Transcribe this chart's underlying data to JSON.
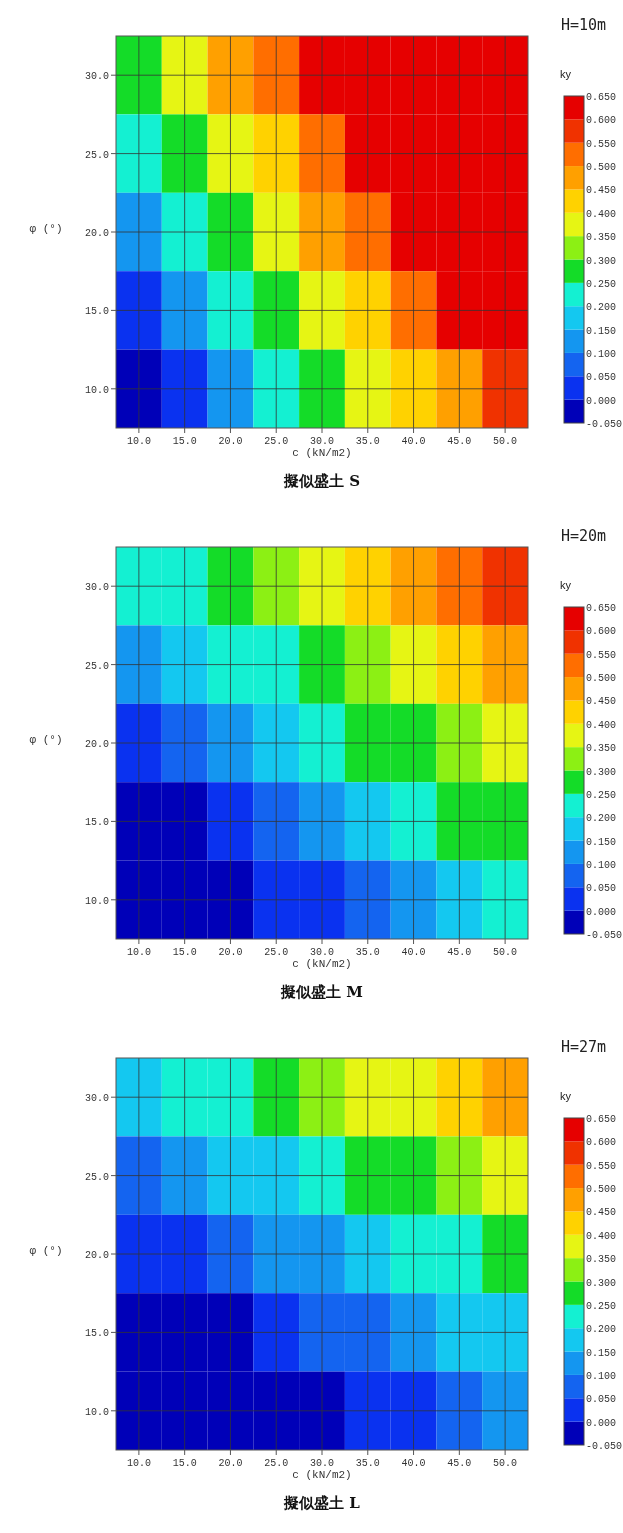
{
  "chart_data": [
    {
      "type": "heatmap",
      "title": "擬似盛土 S",
      "annotations": [
        "H=10m"
      ],
      "xlabel": "c (kN/m2)",
      "ylabel": "φ (°)",
      "clabel": "ky",
      "categories": [
        "10.0",
        "15.0",
        "20.0",
        "25.0",
        "30.0",
        "35.0",
        "40.0",
        "45.0",
        "50.0"
      ],
      "y_categories": [
        "30.0",
        "25.0",
        "20.0",
        "15.0",
        "10.0"
      ],
      "cells": [
        [
          0.29,
          0.37,
          0.45,
          0.52,
          0.6,
          0.68,
          0.76,
          0.83,
          0.91
        ],
        [
          0.21,
          0.29,
          0.37,
          0.44,
          0.52,
          0.6,
          0.68,
          0.75,
          0.83
        ],
        [
          0.14,
          0.22,
          0.29,
          0.37,
          0.45,
          0.52,
          0.6,
          0.68,
          0.76
        ],
        [
          0.03,
          0.13,
          0.21,
          0.29,
          0.36,
          0.44,
          0.52,
          0.6,
          0.68
        ],
        [
          -0.045,
          0.03,
          0.12,
          0.2,
          0.28,
          0.35,
          0.42,
          0.49,
          0.55
        ]
      ],
      "colors": [
        "#0000b8",
        "#0a32f0",
        "#1464f0",
        "#1496f0",
        "#14c8f0",
        "#14f0d2",
        "#14dc28",
        "#8cf014",
        "#e6f514",
        "#ffd200",
        "#ffa000",
        "#ff6e00",
        "#f03200",
        "#e60000"
      ],
      "clim": [
        -0.05,
        0.65
      ],
      "cticks": [
        {
          "value": -0.05,
          "label": "-0.050"
        },
        {
          "value": 0,
          "label": "0.000"
        },
        {
          "value": 0.05,
          "label": "0.050"
        },
        {
          "value": 0.1,
          "label": "0.100"
        },
        {
          "value": 0.15,
          "label": "0.150"
        },
        {
          "value": 0.2,
          "label": "0.200"
        },
        {
          "value": 0.25,
          "label": "0.250"
        },
        {
          "value": 0.3,
          "label": "0.300"
        },
        {
          "value": 0.35,
          "label": "0.350"
        },
        {
          "value": 0.4,
          "label": "0.400"
        },
        {
          "value": 0.45,
          "label": "0.450"
        },
        {
          "value": 0.5,
          "label": "0.500"
        },
        {
          "value": 0.55,
          "label": "0.550"
        },
        {
          "value": 0.6,
          "label": "0.600"
        },
        {
          "value": 0.65,
          "label": "0.650"
        }
      ],
      "grid": true
    },
    {
      "type": "heatmap",
      "title": "擬似盛土 M",
      "annotations": [
        "H=20m"
      ],
      "xlabel": "c (kN/m2)",
      "ylabel": "φ (°)",
      "clabel": "ky",
      "categories": [
        "10.0",
        "15.0",
        "20.0",
        "25.0",
        "30.0",
        "35.0",
        "40.0",
        "45.0",
        "50.0"
      ],
      "y_categories": [
        "30.0",
        "25.0",
        "20.0",
        "15.0",
        "10.0"
      ],
      "cells": [
        [
          0.2,
          0.24,
          0.29,
          0.33,
          0.38,
          0.42,
          0.46,
          0.51,
          0.56
        ],
        [
          0.11,
          0.16,
          0.2,
          0.24,
          0.29,
          0.33,
          0.38,
          0.42,
          0.46
        ],
        [
          0.03,
          0.07,
          0.11,
          0.16,
          0.2,
          0.25,
          0.29,
          0.33,
          0.38
        ],
        [
          -0.06,
          -0.02,
          0.03,
          0.07,
          0.11,
          0.16,
          0.2,
          0.25,
          0.29
        ],
        [
          -0.13,
          -0.09,
          -0.04,
          0.0,
          0.04,
          0.08,
          0.12,
          0.16,
          0.2
        ]
      ],
      "colors": [
        "#0000b8",
        "#0a32f0",
        "#1464f0",
        "#1496f0",
        "#14c8f0",
        "#14f0d2",
        "#14dc28",
        "#8cf014",
        "#e6f514",
        "#ffd200",
        "#ffa000",
        "#ff6e00",
        "#f03200",
        "#e60000"
      ],
      "clim": [
        -0.05,
        0.65
      ],
      "cticks": [
        {
          "value": -0.05,
          "label": "-0.050"
        },
        {
          "value": 0,
          "label": "0.000"
        },
        {
          "value": 0.05,
          "label": "0.050"
        },
        {
          "value": 0.1,
          "label": "0.100"
        },
        {
          "value": 0.15,
          "label": "0.150"
        },
        {
          "value": 0.2,
          "label": "0.200"
        },
        {
          "value": 0.25,
          "label": "0.250"
        },
        {
          "value": 0.3,
          "label": "0.300"
        },
        {
          "value": 0.35,
          "label": "0.350"
        },
        {
          "value": 0.4,
          "label": "0.400"
        },
        {
          "value": 0.45,
          "label": "0.450"
        },
        {
          "value": 0.5,
          "label": "0.500"
        },
        {
          "value": 0.55,
          "label": "0.550"
        },
        {
          "value": 0.6,
          "label": "0.600"
        },
        {
          "value": 0.65,
          "label": "0.650"
        }
      ],
      "grid": true
    },
    {
      "type": "heatmap",
      "title": "擬似盛土 L",
      "annotations": [
        "H=27m"
      ],
      "xlabel": "c (kN/m2)",
      "ylabel": "φ (°)",
      "clabel": "ky",
      "categories": [
        "10.0",
        "15.0",
        "20.0",
        "25.0",
        "30.0",
        "35.0",
        "40.0",
        "45.0",
        "50.0"
      ],
      "y_categories": [
        "30.0",
        "25.0",
        "20.0",
        "15.0",
        "10.0"
      ],
      "cells": [
        [
          0.17,
          0.21,
          0.24,
          0.28,
          0.31,
          0.35,
          0.38,
          0.41,
          0.45
        ],
        [
          0.09,
          0.12,
          0.16,
          0.19,
          0.22,
          0.26,
          0.29,
          0.33,
          0.36
        ],
        [
          0.0,
          0.03,
          0.07,
          0.1,
          0.14,
          0.17,
          0.21,
          0.24,
          0.28
        ],
        [
          -0.09,
          -0.05,
          -0.02,
          0.02,
          0.05,
          0.09,
          0.12,
          0.16,
          0.19
        ],
        [
          -0.17,
          -0.14,
          -0.1,
          -0.07,
          -0.03,
          0.0,
          0.03,
          0.07,
          0.11
        ]
      ],
      "colors": [
        "#0000b8",
        "#0a32f0",
        "#1464f0",
        "#1496f0",
        "#14c8f0",
        "#14f0d2",
        "#14dc28",
        "#8cf014",
        "#e6f514",
        "#ffd200",
        "#ffa000",
        "#ff6e00",
        "#f03200",
        "#e60000"
      ],
      "clim": [
        -0.05,
        0.65
      ],
      "cticks": [
        {
          "value": -0.05,
          "label": "-0.050"
        },
        {
          "value": 0,
          "label": "0.000"
        },
        {
          "value": 0.05,
          "label": "0.050"
        },
        {
          "value": 0.1,
          "label": "0.100"
        },
        {
          "value": 0.15,
          "label": "0.150"
        },
        {
          "value": 0.2,
          "label": "0.200"
        },
        {
          "value": 0.25,
          "label": "0.250"
        },
        {
          "value": 0.3,
          "label": "0.300"
        },
        {
          "value": 0.35,
          "label": "0.350"
        },
        {
          "value": 0.4,
          "label": "0.400"
        },
        {
          "value": 0.45,
          "label": "0.450"
        },
        {
          "value": 0.5,
          "label": "0.500"
        },
        {
          "value": 0.55,
          "label": "0.550"
        },
        {
          "value": 0.6,
          "label": "0.600"
        },
        {
          "value": 0.65,
          "label": "0.650"
        }
      ],
      "grid": true
    }
  ]
}
